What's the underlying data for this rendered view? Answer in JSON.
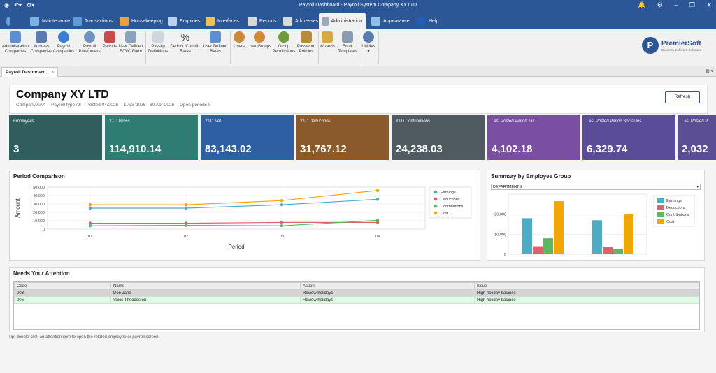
{
  "window": {
    "title": "Payroll Dashboard - Payroll System Company XY LTD"
  },
  "tabs": [
    {
      "label": "Maintenance",
      "color": "#7cb1e6"
    },
    {
      "label": "Transactions",
      "color": "#5d9bd6"
    },
    {
      "label": "Housekeeping",
      "color": "#e8a33d"
    },
    {
      "label": "Enquiries",
      "color": "#bcd2ea"
    },
    {
      "label": "Interfaces",
      "color": "#f0c24b"
    },
    {
      "label": "Reports",
      "color": "#d9d9d9"
    },
    {
      "label": "Addresses",
      "color": "#d9d9d9"
    },
    {
      "label": "Administration",
      "color": "#9aa8b8"
    },
    {
      "label": "Appearance",
      "color": "#8fc0e8"
    },
    {
      "label": "Help",
      "color": "#1f5fb7"
    }
  ],
  "ribbon": [
    {
      "label": "Administration Companies",
      "color": "#5b8fd2"
    },
    {
      "label": "Address Companies",
      "color": "#5b7bb0"
    },
    {
      "label": "Payroll Companies",
      "color": "#3a7dd3"
    },
    {
      "label": "Payroll Parameters",
      "color": "#6e8fbf"
    },
    {
      "label": "Periods",
      "color": "#c94a4a"
    },
    {
      "label": "User Defined E/D/C Form",
      "color": "#8aa2c0"
    },
    {
      "label": "Payslip Definitions",
      "color": "#cfd6e0"
    },
    {
      "label": "Deduct./Contrib. Rates",
      "color": "#333333"
    },
    {
      "label": "User Defined Rates",
      "color": "#5b8fd2"
    },
    {
      "label": "Users",
      "color": "#c98a3c"
    },
    {
      "label": "User Groups",
      "color": "#d08a36"
    },
    {
      "label": "Group Permissions",
      "color": "#6f9b3e"
    },
    {
      "label": "Password Policies",
      "color": "#b98a3a"
    },
    {
      "label": "Wizards",
      "color": "#d8a940"
    },
    {
      "label": "Email Templates",
      "color": "#8a9bb2"
    },
    {
      "label": "Utilities",
      "color": "#5b7bb0"
    }
  ],
  "logo": {
    "name": "PremierSoft",
    "sub": "Business Software Solutions",
    "letter": "P"
  },
  "doc_tab": {
    "label": "Payroll Dashboard",
    "close": "×",
    "right": "⧉ ▾"
  },
  "header": {
    "company": "Company XY LTD",
    "company_code": "Company AAA",
    "payroll_type": "Payroll type All",
    "posted": "Posted 04/2026",
    "range": "1 Apr 2026 - 30 Apr 2026",
    "open": "Open periods 0",
    "refresh": "Refresh"
  },
  "cards": [
    {
      "label": "Employees",
      "value": "3",
      "color": "#2f5e5c"
    },
    {
      "label": "YTD Gross",
      "value": "114,910.14",
      "color": "#2e7c72"
    },
    {
      "label": "YTD Net",
      "value": "83,143.02",
      "color": "#2f5fa3"
    },
    {
      "label": "YTD Deductions",
      "value": "31,767.12",
      "color": "#8a5a2b"
    },
    {
      "label": "YTD Contributions",
      "value": "24,238.03",
      "color": "#4f5a61"
    },
    {
      "label": "Last Posted Period Tax",
      "value": "4,102.18",
      "color": "#7a4ea3"
    },
    {
      "label": "Last Posted Period Social Ins.",
      "value": "6,329.74",
      "color": "#5a4c98"
    },
    {
      "label": "Last Posted P",
      "value": "2,032",
      "color": "#5b4e93"
    }
  ],
  "period": {
    "title": "Period Comparison",
    "chart_data": {
      "type": "line",
      "x": [
        "01",
        "02",
        "03",
        "04"
      ],
      "xlabel": "Period",
      "ylabel": "Amount",
      "ylim": [
        0,
        50000
      ],
      "yticks": [
        "0",
        "10,000",
        "20,000",
        "30,000",
        "40,000",
        "50,000"
      ],
      "grid": true,
      "legend": "right",
      "series": [
        {
          "name": "Earnings",
          "color": "#4bacc6",
          "values": [
            25000,
            25000,
            29000,
            35500
          ]
        },
        {
          "name": "Deductions",
          "color": "#e06070",
          "values": [
            7000,
            7000,
            8000,
            8000
          ]
        },
        {
          "name": "Contributions",
          "color": "#5cb85c",
          "values": [
            4000,
            4500,
            4000,
            10500
          ]
        },
        {
          "name": "Cost",
          "color": "#f0a800",
          "values": [
            29000,
            29000,
            34000,
            46000
          ]
        }
      ]
    }
  },
  "summary": {
    "title": "Summary by Employee Group",
    "dropdown": "DEPARTMENTS",
    "chart_data": {
      "type": "bar",
      "categories": [
        "",
        ""
      ],
      "ylim": [
        0,
        30000
      ],
      "yticks": [
        "0",
        "10,000",
        "20,000"
      ],
      "legend": "right",
      "series": [
        {
          "name": "Earnings",
          "color": "#4bacc6",
          "values": [
            18000,
            17000
          ]
        },
        {
          "name": "Deductions",
          "color": "#e06070",
          "values": [
            4000,
            3500
          ]
        },
        {
          "name": "Contributions",
          "color": "#5cb85c",
          "values": [
            8000,
            2500
          ]
        },
        {
          "name": "Cost",
          "color": "#f0a800",
          "values": [
            26500,
            20000
          ]
        }
      ]
    }
  },
  "attention": {
    "title": "Needs Your Attention",
    "columns": [
      "Code",
      "Name",
      "Action",
      "Issue"
    ],
    "rows": [
      {
        "code": "003",
        "name": "Doe Jane",
        "action": "Review holidays",
        "issue": "High holiday balance"
      },
      {
        "code": "005",
        "name": "Vakis Theodosiou",
        "action": "Review holidays",
        "issue": "High holiday balance"
      }
    ]
  },
  "tip": "Tip: double-click an attention item to open the related employee or payroll screen."
}
